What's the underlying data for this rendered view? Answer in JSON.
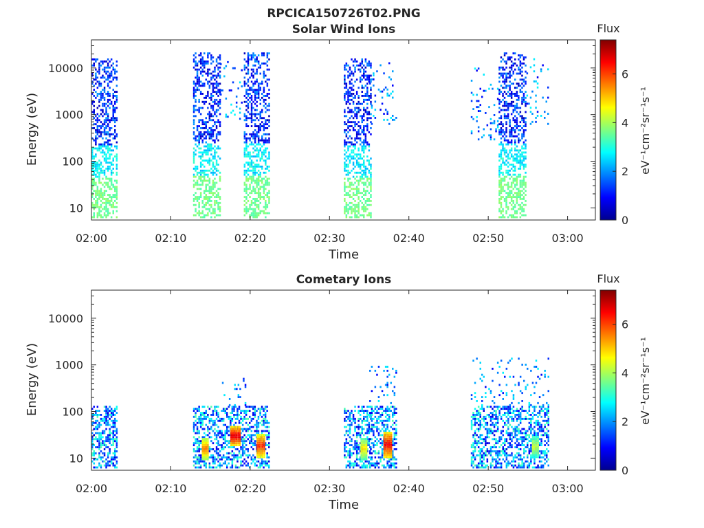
{
  "figure_title": "RPCICA150726T02.PNG",
  "colors": {
    "colormap": [
      "#00008f",
      "#0000ff",
      "#0080ff",
      "#00ffff",
      "#80ff80",
      "#ffff00",
      "#ff8000",
      "#ff0000",
      "#800000"
    ],
    "axis": "#262626",
    "background": "#ffffff"
  },
  "chart_data": [
    {
      "type": "heatmap",
      "title": "Solar Wind Ions",
      "xlabel": "Time",
      "ylabel": "Energy (eV)",
      "x_ticks": [
        "02:00",
        "02:10",
        "02:20",
        "02:30",
        "02:40",
        "02:50",
        "03:00"
      ],
      "xlim_minutes_after_0200": [
        0,
        63.5
      ],
      "y_scale": "log",
      "y_ticks": [
        "10",
        "100",
        "1000",
        "10000"
      ],
      "ylim": [
        5.5,
        40000
      ],
      "colorbar": {
        "title": "Flux",
        "label": "eV⁻¹cm⁻²sr⁻¹s⁻¹",
        "ticks": [
          "0",
          "2",
          "4",
          "6"
        ],
        "range": [
          0,
          7.4
        ]
      },
      "data_blocks": [
        {
          "t_start": 0.0,
          "t_end": 3.2,
          "e_min": 6,
          "e_max": 15000,
          "shape": "wind"
        },
        {
          "t_start": 12.8,
          "t_end": 16.2,
          "e_min": 6,
          "e_max": 20000,
          "shape": "wind"
        },
        {
          "t_start": 16.2,
          "t_end": 19.0,
          "e_min": 700,
          "e_max": 15000,
          "shape": "sparse"
        },
        {
          "t_start": 19.2,
          "t_end": 22.4,
          "e_min": 6,
          "e_max": 20000,
          "shape": "wind"
        },
        {
          "t_start": 31.8,
          "t_end": 35.2,
          "e_min": 6,
          "e_max": 15000,
          "shape": "wind"
        },
        {
          "t_start": 35.0,
          "t_end": 38.5,
          "e_min": 600,
          "e_max": 15000,
          "shape": "sparse"
        },
        {
          "t_start": 47.8,
          "t_end": 51.3,
          "e_min": 280,
          "e_max": 10000,
          "shape": "sparse"
        },
        {
          "t_start": 51.3,
          "t_end": 54.8,
          "e_min": 6,
          "e_max": 20000,
          "shape": "wind"
        },
        {
          "t_start": 54.8,
          "t_end": 57.5,
          "e_min": 600,
          "e_max": 15000,
          "shape": "sparse"
        }
      ]
    },
    {
      "type": "heatmap",
      "title": "Cometary Ions",
      "xlabel": "Time",
      "ylabel": "Energy (eV)",
      "x_ticks": [
        "02:00",
        "02:10",
        "02:20",
        "02:30",
        "02:40",
        "02:50",
        "03:00"
      ],
      "xlim_minutes_after_0200": [
        0,
        63.5
      ],
      "y_scale": "log",
      "y_ticks": [
        "10",
        "100",
        "1000",
        "10000"
      ],
      "ylim": [
        5.5,
        40000
      ],
      "colorbar": {
        "title": "Flux",
        "label": "eV⁻¹cm⁻²sr⁻¹s⁻¹",
        "ticks": [
          "0",
          "2",
          "4",
          "6"
        ],
        "range": [
          0,
          7.4
        ]
      },
      "data_blocks": [
        {
          "t_start": 0.0,
          "t_end": 3.2,
          "e_min": 6,
          "e_max": 130,
          "shape": "comet"
        },
        {
          "t_start": 12.8,
          "t_end": 22.4,
          "e_min": 6,
          "e_max": 130,
          "shape": "comet"
        },
        {
          "t_start": 16.0,
          "t_end": 19.5,
          "e_min": 130,
          "e_max": 700,
          "shape": "sparse"
        },
        {
          "t_start": 31.8,
          "t_end": 35.2,
          "e_min": 6,
          "e_max": 130,
          "shape": "comet"
        },
        {
          "t_start": 35.0,
          "t_end": 38.5,
          "e_min": 6,
          "e_max": 130,
          "shape": "comet"
        },
        {
          "t_start": 35.0,
          "t_end": 38.5,
          "e_min": 130,
          "e_max": 1000,
          "shape": "sparse"
        },
        {
          "t_start": 47.8,
          "t_end": 57.5,
          "e_min": 6,
          "e_max": 130,
          "shape": "comet"
        },
        {
          "t_start": 47.8,
          "t_end": 57.5,
          "e_min": 130,
          "e_max": 1300,
          "shape": "sparse"
        }
      ],
      "hotspots": [
        {
          "t_start": 13.9,
          "t_end": 14.7,
          "e_min": 9,
          "e_max": 25,
          "value": 5.8
        },
        {
          "t_start": 17.5,
          "t_end": 18.8,
          "e_min": 18,
          "e_max": 45,
          "value": 7.0
        },
        {
          "t_start": 20.8,
          "t_end": 21.7,
          "e_min": 10,
          "e_max": 30,
          "value": 6.5
        },
        {
          "t_start": 33.9,
          "t_end": 34.7,
          "e_min": 9,
          "e_max": 25,
          "value": 5.0
        },
        {
          "t_start": 36.8,
          "t_end": 37.8,
          "e_min": 10,
          "e_max": 35,
          "value": 6.8
        },
        {
          "t_start": 55.5,
          "t_end": 56.3,
          "e_min": 10,
          "e_max": 28,
          "value": 4.5
        }
      ]
    }
  ]
}
